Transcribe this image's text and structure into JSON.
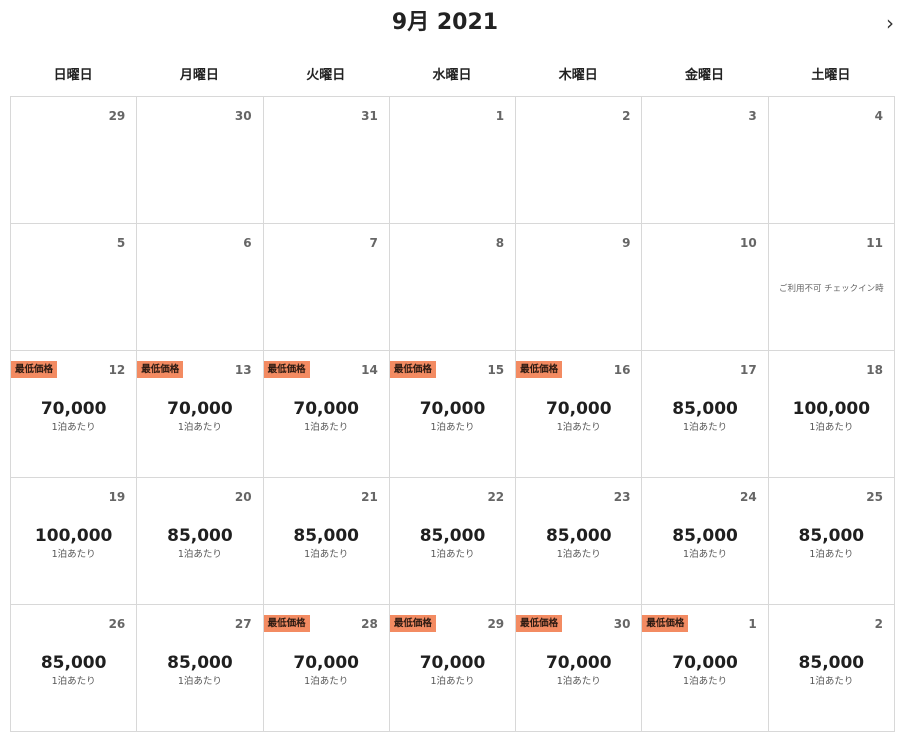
{
  "calendar": {
    "title": "9月 2021",
    "next_label": "›",
    "badge_label": "最低価格",
    "per_night_label": "1泊あたり",
    "weekdays": [
      "日曜日",
      "月曜日",
      "火曜日",
      "水曜日",
      "木曜日",
      "金曜日",
      "土曜日"
    ],
    "colors": {
      "badge": "#f38b62",
      "border": "#d8d8d8"
    },
    "cells": [
      {
        "day": "29"
      },
      {
        "day": "30"
      },
      {
        "day": "31"
      },
      {
        "day": "1"
      },
      {
        "day": "2"
      },
      {
        "day": "3"
      },
      {
        "day": "4"
      },
      {
        "day": "5"
      },
      {
        "day": "6"
      },
      {
        "day": "7"
      },
      {
        "day": "8"
      },
      {
        "day": "9"
      },
      {
        "day": "10"
      },
      {
        "day": "11",
        "note": "ご利用不可 チェックイン時"
      },
      {
        "day": "12",
        "price": "70,000",
        "lowest": true
      },
      {
        "day": "13",
        "price": "70,000",
        "lowest": true
      },
      {
        "day": "14",
        "price": "70,000",
        "lowest": true
      },
      {
        "day": "15",
        "price": "70,000",
        "lowest": true
      },
      {
        "day": "16",
        "price": "70,000",
        "lowest": true
      },
      {
        "day": "17",
        "price": "85,000"
      },
      {
        "day": "18",
        "price": "100,000"
      },
      {
        "day": "19",
        "price": "100,000"
      },
      {
        "day": "20",
        "price": "85,000"
      },
      {
        "day": "21",
        "price": "85,000"
      },
      {
        "day": "22",
        "price": "85,000"
      },
      {
        "day": "23",
        "price": "85,000"
      },
      {
        "day": "24",
        "price": "85,000"
      },
      {
        "day": "25",
        "price": "85,000"
      },
      {
        "day": "26",
        "price": "85,000"
      },
      {
        "day": "27",
        "price": "85,000"
      },
      {
        "day": "28",
        "price": "70,000",
        "lowest": true
      },
      {
        "day": "29",
        "price": "70,000",
        "lowest": true
      },
      {
        "day": "30",
        "price": "70,000",
        "lowest": true
      },
      {
        "day": "1",
        "price": "70,000",
        "lowest": true
      },
      {
        "day": "2",
        "price": "85,000"
      }
    ]
  }
}
